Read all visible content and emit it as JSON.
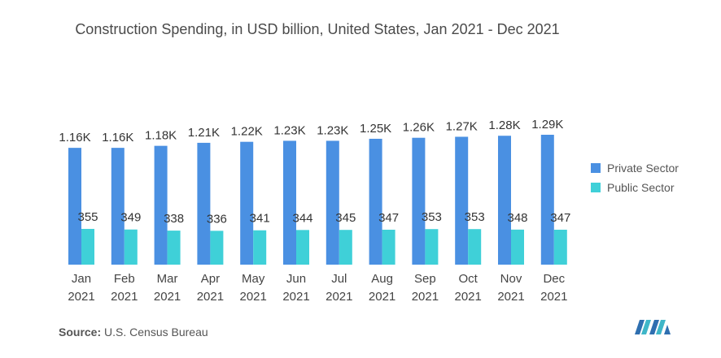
{
  "chart_data": {
    "type": "bar",
    "title": "Construction Spending, in USD billion, United States, Jan 2021 - Dec 2021",
    "categories": [
      [
        "Jan",
        "2021"
      ],
      [
        "Feb",
        "2021"
      ],
      [
        "Mar",
        "2021"
      ],
      [
        "Apr",
        "2021"
      ],
      [
        "May",
        "2021"
      ],
      [
        "Jun",
        "2021"
      ],
      [
        "Jul",
        "2021"
      ],
      [
        "Aug",
        "2021"
      ],
      [
        "Sep",
        "2021"
      ],
      [
        "Oct",
        "2021"
      ],
      [
        "Nov",
        "2021"
      ],
      [
        "Dec",
        "2021"
      ]
    ],
    "series": [
      {
        "name": "Private Sector",
        "color": "#4a90e2",
        "values": [
          1160,
          1160,
          1180,
          1210,
          1220,
          1230,
          1230,
          1250,
          1260,
          1270,
          1280,
          1290
        ],
        "labels": [
          "1.16K",
          "1.16K",
          "1.18K",
          "1.21K",
          "1.22K",
          "1.23K",
          "1.23K",
          "1.25K",
          "1.26K",
          "1.27K",
          "1.28K",
          "1.29K"
        ]
      },
      {
        "name": "Public Sector",
        "color": "#3fd0d8",
        "values": [
          355,
          349,
          338,
          336,
          341,
          344,
          345,
          347,
          353,
          353,
          348,
          347
        ],
        "labels": [
          "355",
          "349",
          "338",
          "336",
          "341",
          "344",
          "345",
          "347",
          "353",
          "353",
          "348",
          "347"
        ]
      }
    ],
    "ylim": [
      0,
      1290
    ],
    "grid": false,
    "legend": "right"
  },
  "source": {
    "label": "Source:",
    "text": "U.S. Census Bureau"
  }
}
